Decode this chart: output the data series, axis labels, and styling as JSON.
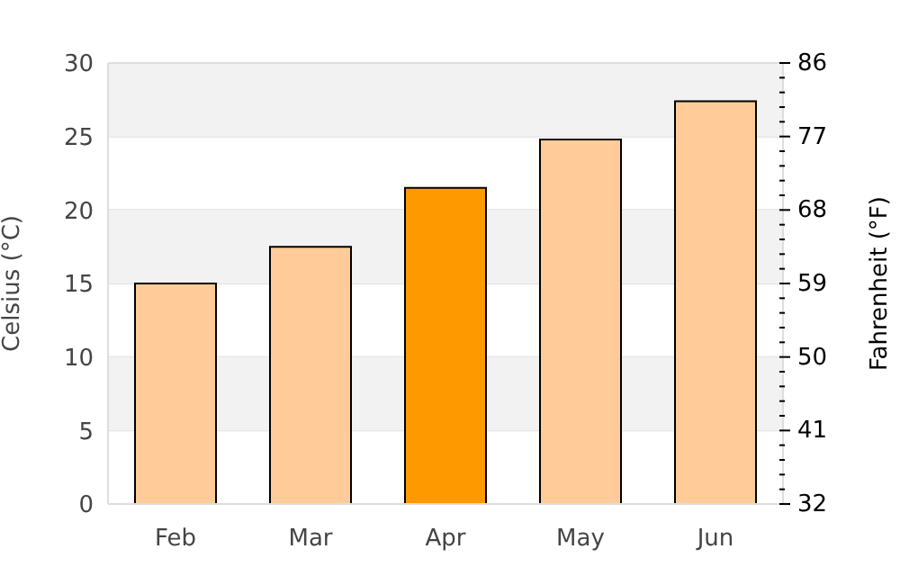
{
  "chart_data": {
    "type": "bar",
    "categories": [
      "Feb",
      "Mar",
      "Apr",
      "May",
      "Jun"
    ],
    "values": [
      15,
      17.5,
      21.5,
      24.8,
      27.4
    ],
    "colors": [
      "#ffcc99",
      "#ffcc99",
      "#ff9900",
      "#ffcc99",
      "#ffcc99"
    ],
    "ylabel": "Celsius (°C)",
    "y2label": "Fahrenheit (°F)",
    "ylim": [
      0,
      30
    ],
    "yticks": [
      0,
      5,
      10,
      15,
      20,
      25,
      30
    ],
    "y2lim": [
      32,
      86
    ],
    "y2ticks": [
      32,
      {
        "value": 33.8,
        "label": null
      },
      {
        "value": 35.6,
        "label": null
      },
      {
        "value": 37.4,
        "label": null
      },
      {
        "value": 39.2,
        "label": null
      },
      41,
      {
        "value": 42.8,
        "label": null
      },
      {
        "value": 44.6,
        "label": null
      },
      {
        "value": 46.4,
        "label": null
      },
      {
        "value": 48.2,
        "label": null
      },
      50,
      {
        "value": 51.8,
        "label": null
      },
      {
        "value": 53.6,
        "label": null
      },
      {
        "value": 55.4,
        "label": null
      },
      {
        "value": 57.2,
        "label": null
      },
      59,
      {
        "value": 60.8,
        "label": null
      },
      {
        "value": 62.6,
        "label": null
      },
      {
        "value": 64.4,
        "label": null
      },
      {
        "value": 66.2,
        "label": null
      },
      68,
      {
        "value": 69.8,
        "label": null
      },
      {
        "value": 71.6,
        "label": null
      },
      {
        "value": 73.4,
        "label": null
      },
      {
        "value": 75.2,
        "label": null
      },
      77,
      {
        "value": 78.8,
        "label": null
      },
      {
        "value": 80.6,
        "label": null
      },
      {
        "value": 82.4,
        "label": null
      },
      {
        "value": 84.2,
        "label": null
      },
      86
    ],
    "bands": [
      {
        "axis": "y",
        "from": 5,
        "to": 10,
        "color": "#f2f2f2"
      },
      {
        "axis": "y",
        "from": 15,
        "to": 20,
        "color": "#f2f2f2"
      },
      {
        "axis": "y",
        "from": 25,
        "to": 30,
        "color": "#f2f2f2"
      }
    ],
    "grid": "y",
    "legend": false
  }
}
